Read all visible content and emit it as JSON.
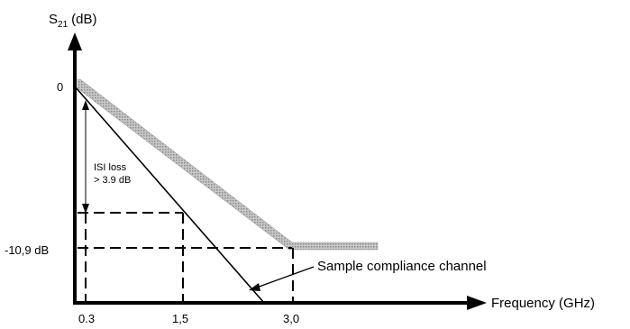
{
  "y_axis": {
    "symbol": "S",
    "subscript": "21",
    "unit": "(dB)"
  },
  "x_axis": {
    "label": "Frequency (GHz)"
  },
  "y_ticks": {
    "zero": "0",
    "lower": "-10,9 dB"
  },
  "x_ticks": [
    "0.3",
    "1,5",
    "3,0"
  ],
  "annotations": {
    "isi_line1": "ISI loss",
    "isi_line2": "> 3.9 dB",
    "channel": "Sample compliance channel"
  },
  "colors": {
    "limit_line": "#b4b4b4",
    "ink": "#000000"
  }
}
